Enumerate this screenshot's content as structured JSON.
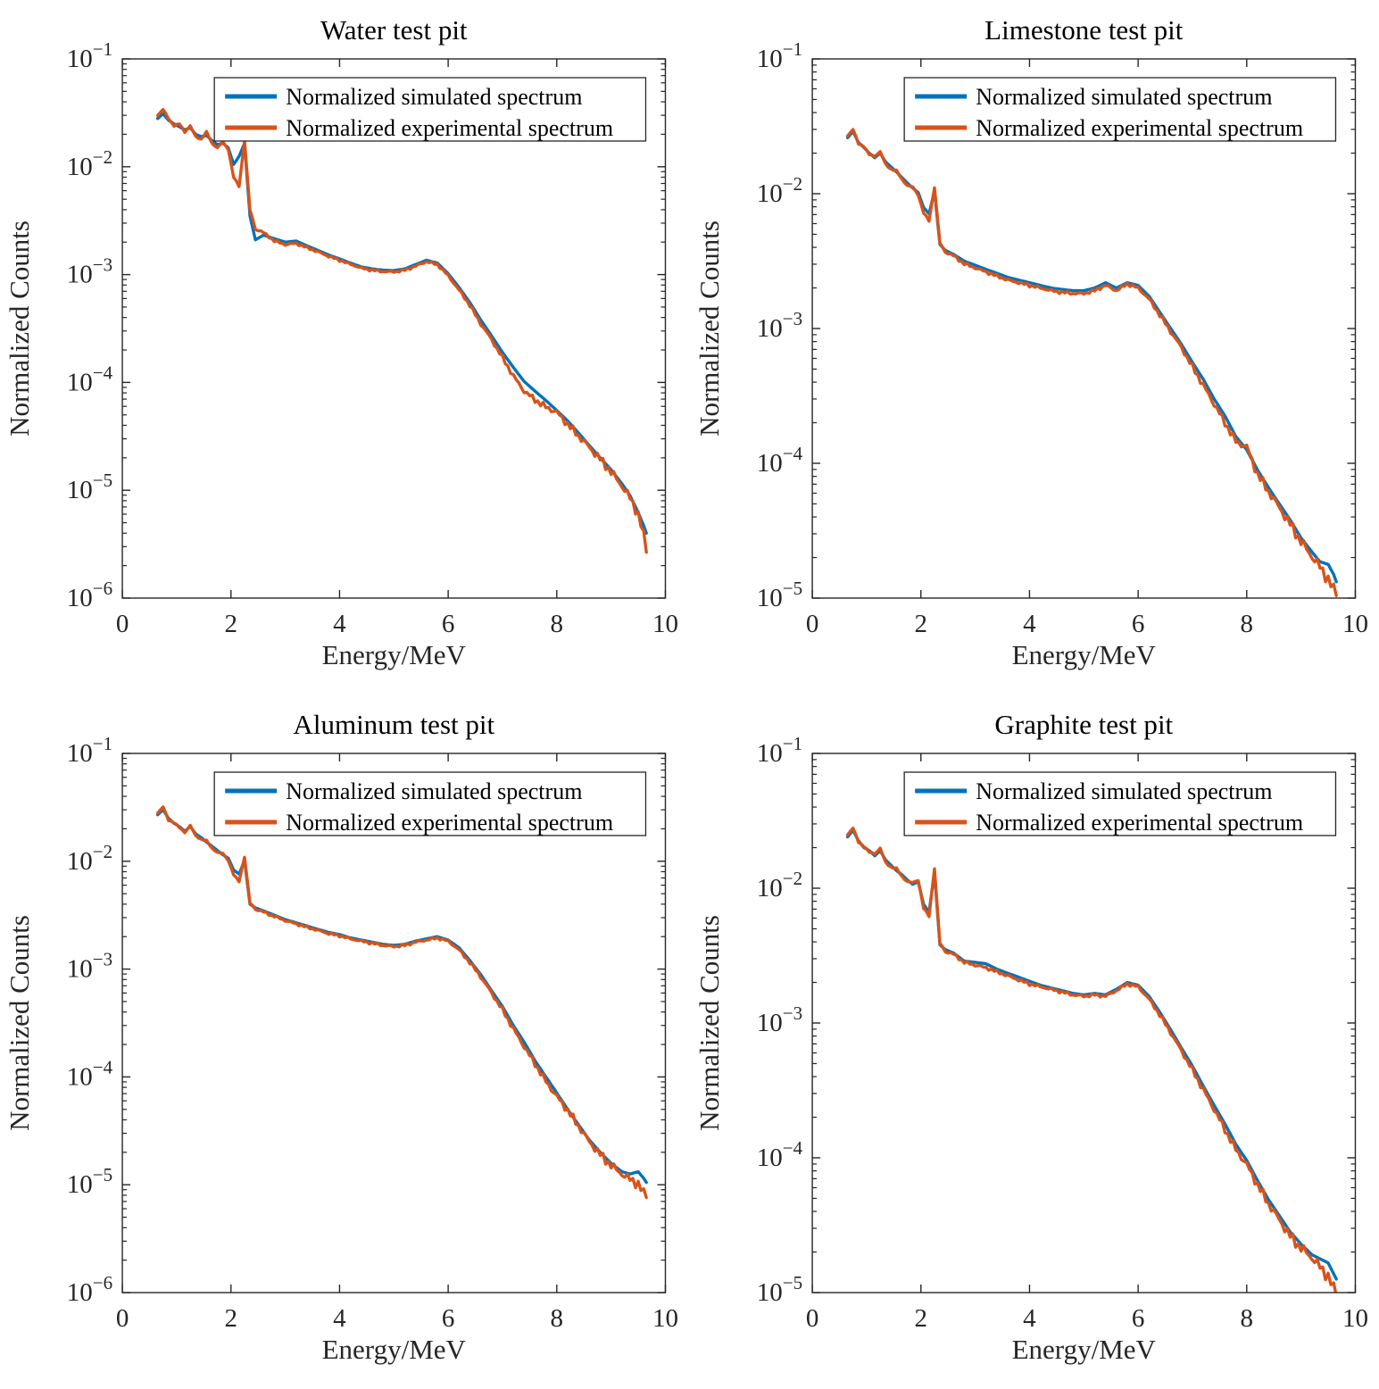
{
  "page": {
    "background": "#ffffff",
    "layout": {
      "rows": 2,
      "cols": 2
    }
  },
  "style": {
    "simulated_color": "#0072BD",
    "experimental_color": "#D95319",
    "axis_color": "#262626",
    "text_color": "#262626",
    "title_color": "#000000",
    "legend_background": "#ffffff",
    "legend_border": "#262626"
  },
  "legend": {
    "labels": [
      "Normalized simulated spectrum",
      "Normalized experimental spectrum"
    ],
    "position": "inside-top"
  },
  "chart_data": [
    {
      "type": "line",
      "title": "Water test pit",
      "xlabel": "Energy/MeV",
      "ylabel": "Normalized Counts",
      "xlim": [
        0,
        10
      ],
      "xticks": [
        0,
        2,
        4,
        6,
        8,
        10
      ],
      "yscale": "log",
      "ylim": [
        1e-06,
        0.1
      ],
      "grid": false,
      "legend_position": "inside-top",
      "x": [
        0.65,
        0.75,
        0.85,
        0.95,
        1.05,
        1.15,
        1.25,
        1.35,
        1.45,
        1.55,
        1.65,
        1.75,
        1.85,
        1.95,
        2.05,
        2.15,
        2.25,
        2.35,
        2.45,
        2.6,
        2.8,
        3.0,
        3.2,
        3.4,
        3.6,
        3.8,
        4.0,
        4.2,
        4.4,
        4.6,
        4.8,
        5.0,
        5.2,
        5.4,
        5.6,
        5.8,
        6.0,
        6.2,
        6.4,
        6.6,
        6.8,
        7.0,
        7.2,
        7.4,
        7.6,
        7.8,
        8.0,
        8.2,
        8.4,
        8.6,
        8.8,
        9.0,
        9.2,
        9.35,
        9.5,
        9.6,
        9.65
      ],
      "series": [
        {
          "name": "Normalized simulated spectrum",
          "color": "#0072BD",
          "y": [
            0.028,
            0.031,
            0.027,
            0.025,
            0.0235,
            0.022,
            0.023,
            0.02,
            0.019,
            0.0195,
            0.0175,
            0.016,
            0.0165,
            0.015,
            0.0105,
            0.0125,
            0.0165,
            0.0035,
            0.0021,
            0.00232,
            0.00215,
            0.002,
            0.00205,
            0.00185,
            0.00168,
            0.00152,
            0.0014,
            0.00128,
            0.00118,
            0.00113,
            0.0011,
            0.00109,
            0.00113,
            0.00124,
            0.00136,
            0.00128,
            0.00102,
            0.00076,
            0.00055,
            0.00038,
            0.00027,
            0.00019,
            0.000138,
            0.000102,
            8.3e-05,
            6.8e-05,
            5.5e-05,
            4.4e-05,
            3.4e-05,
            2.6e-05,
            2e-05,
            1.55e-05,
            1.15e-05,
            8.9e-06,
            6.2e-06,
            4.7e-06,
            4e-06
          ]
        },
        {
          "name": "Normalized experimental spectrum",
          "color": "#D95319",
          "y": [
            0.03,
            0.034,
            0.028,
            0.024,
            0.025,
            0.021,
            0.024,
            0.019,
            0.018,
            0.021,
            0.0165,
            0.015,
            0.017,
            0.0145,
            0.008,
            0.0066,
            0.0175,
            0.004,
            0.00265,
            0.00245,
            0.00205,
            0.0019,
            0.00195,
            0.00178,
            0.00163,
            0.00148,
            0.00136,
            0.00125,
            0.00115,
            0.0011,
            0.00107,
            0.00106,
            0.0011,
            0.0012,
            0.00132,
            0.00124,
            0.00098,
            0.00072,
            0.00052,
            0.00035,
            0.00025,
            0.00017,
            0.000115,
            8.3e-05,
            6.9e-05,
            5.9e-05,
            5.3e-05,
            4.1e-05,
            3.2e-05,
            2.5e-05,
            1.95e-05,
            1.48e-05,
            1.1e-05,
            8.5e-06,
            6e-06,
            3.8e-06,
            2.8e-06
          ]
        }
      ]
    },
    {
      "type": "line",
      "title": "Limestone test pit",
      "xlabel": "Energy/MeV",
      "ylabel": "Normalized Counts",
      "xlim": [
        0,
        10
      ],
      "xticks": [
        0,
        2,
        4,
        6,
        8,
        10
      ],
      "yscale": "log",
      "ylim": [
        1e-05,
        0.1
      ],
      "grid": false,
      "legend_position": "inside-top",
      "x": [
        0.65,
        0.75,
        0.85,
        0.95,
        1.05,
        1.15,
        1.25,
        1.35,
        1.45,
        1.55,
        1.65,
        1.75,
        1.85,
        1.95,
        2.05,
        2.15,
        2.25,
        2.35,
        2.45,
        2.6,
        2.8,
        3.0,
        3.2,
        3.4,
        3.6,
        3.8,
        4.0,
        4.2,
        4.4,
        4.6,
        4.8,
        5.0,
        5.2,
        5.4,
        5.6,
        5.8,
        6.0,
        6.2,
        6.4,
        6.6,
        6.8,
        7.0,
        7.2,
        7.4,
        7.6,
        7.8,
        8.0,
        8.2,
        8.4,
        8.6,
        8.8,
        9.0,
        9.2,
        9.35,
        9.5,
        9.6,
        9.65
      ],
      "series": [
        {
          "name": "Normalized simulated spectrum",
          "color": "#0072BD",
          "y": [
            0.026,
            0.029,
            0.024,
            0.022,
            0.02,
            0.0185,
            0.02,
            0.0172,
            0.0158,
            0.0145,
            0.0132,
            0.012,
            0.011,
            0.0102,
            0.0079,
            0.0071,
            0.0105,
            0.0042,
            0.0038,
            0.00355,
            0.00316,
            0.00295,
            0.00275,
            0.00257,
            0.0024,
            0.00229,
            0.00219,
            0.00209,
            0.002,
            0.00195,
            0.00191,
            0.00191,
            0.002,
            0.00219,
            0.002,
            0.00219,
            0.00209,
            0.00174,
            0.00132,
            0.001,
            0.00076,
            0.00056,
            0.00042,
            0.0003,
            0.000224,
            0.000158,
            0.000126,
            8.9e-05,
            6.6e-05,
            5e-05,
            3.8e-05,
            2.8e-05,
            2.2e-05,
            1.86e-05,
            1.78e-05,
            1.5e-05,
            1.32e-05
          ]
        },
        {
          "name": "Normalized experimental spectrum",
          "color": "#D95319",
          "y": [
            0.027,
            0.03,
            0.0235,
            0.0225,
            0.0195,
            0.019,
            0.0205,
            0.0165,
            0.0152,
            0.0148,
            0.0128,
            0.0115,
            0.0112,
            0.0098,
            0.0072,
            0.0063,
            0.0112,
            0.0043,
            0.0037,
            0.00347,
            0.00302,
            0.00282,
            0.00263,
            0.00245,
            0.00229,
            0.00219,
            0.00209,
            0.002,
            0.00191,
            0.00186,
            0.00182,
            0.00182,
            0.00191,
            0.00209,
            0.00191,
            0.00214,
            0.002,
            0.00166,
            0.00126,
            0.00095,
            0.00072,
            0.00052,
            0.00038,
            0.000275,
            0.0002,
            0.000145,
            0.000132,
            8.3e-05,
            6.2e-05,
            4.7e-05,
            3.55e-05,
            2.63e-05,
            2.04e-05,
            1.7e-05,
            1.38e-05,
            1.15e-05,
            1.1e-05
          ]
        }
      ]
    },
    {
      "type": "line",
      "title": "Aluminum test pit",
      "xlabel": "Energy/MeV",
      "ylabel": "Normalized Counts",
      "xlim": [
        0,
        10
      ],
      "xticks": [
        0,
        2,
        4,
        6,
        8,
        10
      ],
      "yscale": "log",
      "ylim": [
        1e-06,
        0.1
      ],
      "grid": false,
      "legend_position": "inside-top",
      "x": [
        0.65,
        0.75,
        0.85,
        0.95,
        1.05,
        1.15,
        1.25,
        1.35,
        1.45,
        1.55,
        1.65,
        1.75,
        1.85,
        1.95,
        2.05,
        2.15,
        2.25,
        2.35,
        2.45,
        2.6,
        2.8,
        3.0,
        3.2,
        3.4,
        3.6,
        3.8,
        4.0,
        4.2,
        4.4,
        4.6,
        4.8,
        5.0,
        5.2,
        5.4,
        5.6,
        5.8,
        6.0,
        6.2,
        6.4,
        6.6,
        6.8,
        7.0,
        7.2,
        7.4,
        7.6,
        7.8,
        8.0,
        8.2,
        8.4,
        8.6,
        8.8,
        9.0,
        9.2,
        9.35,
        9.5,
        9.6,
        9.65
      ],
      "series": [
        {
          "name": "Normalized simulated spectrum",
          "color": "#0072BD",
          "y": [
            0.027,
            0.03,
            0.025,
            0.0225,
            0.021,
            0.019,
            0.021,
            0.018,
            0.0166,
            0.0151,
            0.0138,
            0.0126,
            0.0115,
            0.0107,
            0.0083,
            0.0076,
            0.0102,
            0.004,
            0.0037,
            0.00347,
            0.00316,
            0.00288,
            0.00269,
            0.00251,
            0.00234,
            0.00219,
            0.00209,
            0.00195,
            0.00186,
            0.00178,
            0.0017,
            0.00166,
            0.0017,
            0.00182,
            0.00191,
            0.002,
            0.00186,
            0.00158,
            0.0012,
            0.00089,
            0.00063,
            0.00045,
            0.0003,
            0.00021,
            0.000141,
            0.0001,
            7.1e-05,
            5e-05,
            3.6e-05,
            2.6e-05,
            2e-05,
            1.58e-05,
            1.32e-05,
            1.26e-05,
            1.32e-05,
            1.15e-05,
            1.05e-05
          ]
        },
        {
          "name": "Normalized experimental spectrum",
          "color": "#D95319",
          "y": [
            0.028,
            0.032,
            0.024,
            0.023,
            0.0205,
            0.0185,
            0.0215,
            0.0172,
            0.016,
            0.0155,
            0.0132,
            0.0121,
            0.0118,
            0.0102,
            0.0075,
            0.0065,
            0.011,
            0.0041,
            0.0036,
            0.00339,
            0.00309,
            0.00282,
            0.00263,
            0.00245,
            0.00229,
            0.00214,
            0.00204,
            0.00191,
            0.00182,
            0.00174,
            0.00166,
            0.00162,
            0.00166,
            0.00178,
            0.00186,
            0.00195,
            0.00182,
            0.00151,
            0.00115,
            0.00085,
            0.0006,
            0.00042,
            0.00028,
            0.000191,
            0.000132,
            9.1e-05,
            6.6e-05,
            4.9e-05,
            3.5e-05,
            2.5e-05,
            1.91e-05,
            1.51e-05,
            1.26e-05,
            1.12e-05,
            1.02e-05,
            8.3e-06,
            8e-06
          ]
        }
      ]
    },
    {
      "type": "line",
      "title": "Graphite test pit",
      "xlabel": "Energy/MeV",
      "ylabel": "Normalized Counts",
      "xlim": [
        0,
        10
      ],
      "xticks": [
        0,
        2,
        4,
        6,
        8,
        10
      ],
      "yscale": "log",
      "ylim": [
        1e-05,
        0.1
      ],
      "grid": false,
      "legend_position": "inside-top",
      "x": [
        0.65,
        0.75,
        0.85,
        0.95,
        1.05,
        1.15,
        1.25,
        1.35,
        1.45,
        1.55,
        1.65,
        1.75,
        1.85,
        1.95,
        2.05,
        2.15,
        2.25,
        2.35,
        2.45,
        2.6,
        2.8,
        3.0,
        3.2,
        3.4,
        3.6,
        3.8,
        4.0,
        4.2,
        4.4,
        4.6,
        4.8,
        5.0,
        5.2,
        5.4,
        5.6,
        5.8,
        6.0,
        6.2,
        6.4,
        6.6,
        6.8,
        7.0,
        7.2,
        7.4,
        7.6,
        7.8,
        8.0,
        8.2,
        8.4,
        8.6,
        8.8,
        9.0,
        9.2,
        9.35,
        9.5,
        9.6,
        9.65
      ],
      "series": [
        {
          "name": "Normalized simulated spectrum",
          "color": "#0072BD",
          "y": [
            0.024,
            0.027,
            0.0225,
            0.02,
            0.019,
            0.0174,
            0.019,
            0.0162,
            0.0148,
            0.0135,
            0.0126,
            0.0115,
            0.0107,
            0.0112,
            0.0076,
            0.0066,
            0.0132,
            0.0038,
            0.0035,
            0.00331,
            0.00288,
            0.00282,
            0.00275,
            0.00251,
            0.00234,
            0.00219,
            0.00204,
            0.00191,
            0.00182,
            0.00174,
            0.00166,
            0.00162,
            0.00166,
            0.00162,
            0.00178,
            0.002,
            0.00191,
            0.00158,
            0.0012,
            0.00089,
            0.00065,
            0.00048,
            0.00034,
            0.000245,
            0.000178,
            0.000126,
            9.55e-05,
            6.76e-05,
            4.9e-05,
            3.72e-05,
            2.82e-05,
            2.29e-05,
            1.91e-05,
            1.78e-05,
            1.66e-05,
            1.38e-05,
            1.26e-05
          ]
        },
        {
          "name": "Normalized experimental spectrum",
          "color": "#D95319",
          "y": [
            0.025,
            0.028,
            0.022,
            0.0205,
            0.0185,
            0.018,
            0.0198,
            0.0155,
            0.0143,
            0.014,
            0.0122,
            0.0112,
            0.011,
            0.0115,
            0.0071,
            0.0062,
            0.0141,
            0.0039,
            0.0034,
            0.00324,
            0.00282,
            0.00269,
            0.00257,
            0.0024,
            0.00224,
            0.00209,
            0.00195,
            0.00186,
            0.00178,
            0.0017,
            0.00162,
            0.00158,
            0.00162,
            0.00158,
            0.00174,
            0.00195,
            0.00186,
            0.00151,
            0.00115,
            0.00085,
            0.00062,
            0.00045,
            0.00032,
            0.000229,
            0.000162,
            0.000115,
            8.91e-05,
            6.31e-05,
            4.57e-05,
            3.47e-05,
            2.63e-05,
            2.14e-05,
            1.82e-05,
            1.55e-05,
            1.32e-05,
            1.07e-05,
            1e-05
          ]
        }
      ]
    }
  ]
}
